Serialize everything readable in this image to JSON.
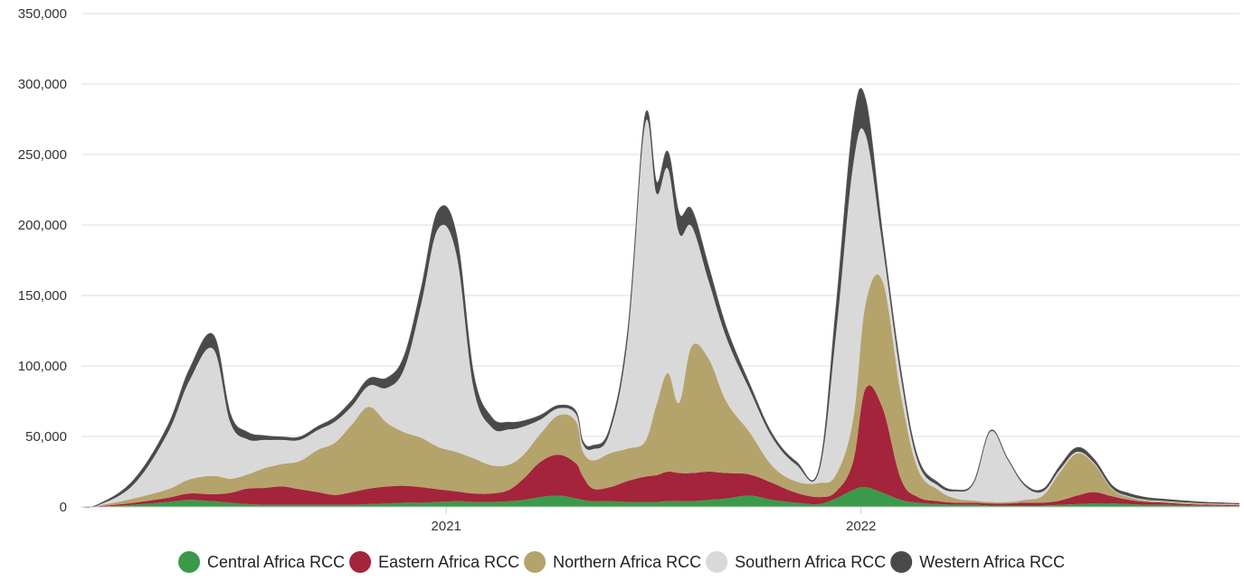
{
  "chart_data": {
    "type": "area",
    "stacked": true,
    "title": "",
    "xlabel": "",
    "ylabel": "",
    "xlim": [
      "2020-02-15",
      "2022-11-30"
    ],
    "ylim": [
      0,
      350000
    ],
    "yticks": [
      0,
      50000,
      100000,
      150000,
      200000,
      250000,
      300000,
      350000
    ],
    "ytick_labels": [
      "0",
      "50,000",
      "100,000",
      "150,000",
      "200,000",
      "250,000",
      "300,000",
      "350,000"
    ],
    "xticks": [
      "2021-01-01",
      "2022-01-01"
    ],
    "xtick_labels": [
      "2021",
      "2022"
    ],
    "grid": "horizontal",
    "legend_position": "bottom",
    "x": [
      "2020-02-15",
      "2020-03-01",
      "2020-04-01",
      "2020-05-01",
      "2020-05-20",
      "2020-06-10",
      "2020-06-25",
      "2020-07-10",
      "2020-07-25",
      "2020-08-10",
      "2020-08-25",
      "2020-09-10",
      "2020-09-25",
      "2020-10-10",
      "2020-10-25",
      "2020-11-10",
      "2020-11-25",
      "2020-12-10",
      "2020-12-25",
      "2021-01-10",
      "2021-01-25",
      "2021-02-10",
      "2021-02-25",
      "2021-03-10",
      "2021-03-25",
      "2021-04-10",
      "2021-04-25",
      "2021-05-01",
      "2021-05-10",
      "2021-05-25",
      "2021-06-10",
      "2021-06-25",
      "2021-07-05",
      "2021-07-15",
      "2021-07-25",
      "2021-08-05",
      "2021-08-20",
      "2021-09-05",
      "2021-09-25",
      "2021-10-15",
      "2021-11-05",
      "2021-11-25",
      "2021-12-10",
      "2021-12-25",
      "2022-01-05",
      "2022-01-20",
      "2022-02-05",
      "2022-02-20",
      "2022-03-10",
      "2022-03-25",
      "2022-04-10",
      "2022-04-25",
      "2022-05-10",
      "2022-05-25",
      "2022-06-10",
      "2022-06-25",
      "2022-07-10",
      "2022-07-25",
      "2022-08-10",
      "2022-08-25",
      "2022-09-10",
      "2022-09-25",
      "2022-10-15",
      "2022-11-01",
      "2022-11-30"
    ],
    "series": [
      {
        "name": "Central Africa RCC",
        "color": "#3a9a4a",
        "values": [
          0,
          200,
          1500,
          3500,
          5000,
          4000,
          3000,
          2000,
          1500,
          1500,
          1500,
          1500,
          1500,
          1500,
          2000,
          2500,
          3000,
          3000,
          3500,
          4000,
          3500,
          3500,
          4000,
          5000,
          7000,
          8000,
          6000,
          5000,
          4000,
          4000,
          3500,
          3500,
          3500,
          4000,
          4000,
          4000,
          5000,
          6000,
          8000,
          5000,
          3000,
          2000,
          6000,
          12000,
          14000,
          10000,
          5000,
          3000,
          2000,
          1500,
          1500,
          1000,
          1000,
          1000,
          1000,
          1500,
          2000,
          2500,
          2500,
          2000,
          1500,
          1500,
          1000,
          800,
          500
        ]
      },
      {
        "name": "Eastern Africa RCC",
        "color": "#a4243b",
        "values": [
          0,
          300,
          1500,
          3000,
          4500,
          5000,
          7000,
          11000,
          12000,
          13000,
          11000,
          9000,
          7000,
          9000,
          11000,
          12000,
          12000,
          11000,
          9000,
          7000,
          6000,
          6000,
          8000,
          15000,
          25000,
          29000,
          25000,
          17000,
          9000,
          10000,
          15000,
          18000,
          19000,
          21000,
          20000,
          20000,
          20000,
          18000,
          15000,
          12000,
          7000,
          5000,
          5000,
          20000,
          70000,
          60000,
          15000,
          4000,
          2000,
          1500,
          1500,
          1500,
          1500,
          2000,
          2000,
          3000,
          6000,
          8000,
          5000,
          3000,
          2000,
          1500,
          1000,
          800,
          700
        ]
      },
      {
        "name": "Northern Africa RCC",
        "color": "#b5a36c",
        "values": [
          0,
          500,
          3000,
          6000,
          10000,
          13000,
          10000,
          10000,
          14000,
          16000,
          20000,
          30000,
          37000,
          48000,
          58000,
          45000,
          38000,
          35000,
          30000,
          28000,
          25000,
          20000,
          18000,
          17000,
          20000,
          28000,
          30000,
          18000,
          20000,
          24000,
          23000,
          25000,
          50000,
          70000,
          50000,
          90000,
          80000,
          50000,
          30000,
          12000,
          8000,
          10000,
          12000,
          30000,
          60000,
          90000,
          60000,
          20000,
          8000,
          3000,
          1500,
          1000,
          1000,
          2000,
          5000,
          20000,
          30000,
          20000,
          5000,
          2000,
          1000,
          800,
          800,
          600,
          500
        ]
      },
      {
        "name": "Southern Africa RCC",
        "color": "#d9d9d9",
        "values": [
          0,
          300,
          10000,
          40000,
          70000,
          90000,
          40000,
          25000,
          20000,
          17000,
          15000,
          14000,
          15000,
          13000,
          15000,
          25000,
          45000,
          95000,
          155000,
          140000,
          50000,
          27000,
          25000,
          20000,
          10000,
          5000,
          5000,
          5000,
          8000,
          15000,
          80000,
          225000,
          150000,
          145000,
          120000,
          85000,
          55000,
          45000,
          30000,
          20000,
          12000,
          8000,
          100000,
          180000,
          120000,
          25000,
          12000,
          5000,
          3000,
          5000,
          12000,
          50000,
          30000,
          10000,
          3000,
          2000,
          1000,
          800,
          600,
          500,
          500,
          400,
          300,
          200,
          200
        ]
      },
      {
        "name": "Western Africa RCC",
        "color": "#4a4a4a",
        "values": [
          0,
          500,
          3000,
          5000,
          8000,
          10000,
          6000,
          5000,
          3000,
          2000,
          2000,
          2500,
          3000,
          4000,
          5000,
          7000,
          9000,
          11000,
          13000,
          14000,
          10000,
          7000,
          5000,
          4000,
          3000,
          2000,
          2000,
          2000,
          2500,
          3000,
          5000,
          6000,
          8000,
          12000,
          14000,
          12000,
          10000,
          7000,
          4000,
          2500,
          2000,
          2000,
          18000,
          30000,
          25000,
          8000,
          5000,
          3000,
          2000,
          1000,
          800,
          700,
          700,
          1000,
          1500,
          2500,
          3000,
          2500,
          2000,
          2000,
          1500,
          1200,
          1000,
          800,
          500
        ]
      }
    ]
  }
}
